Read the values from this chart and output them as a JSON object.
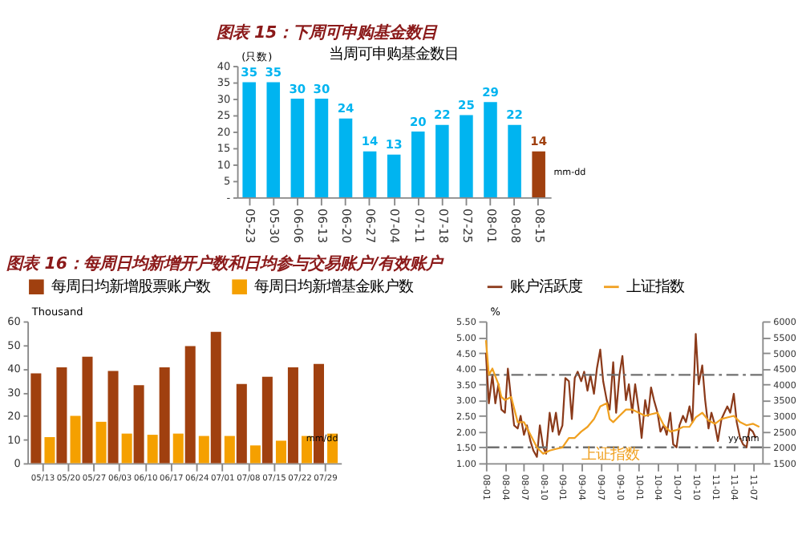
{
  "chart_data": [
    {
      "type": "bar",
      "title": "图表 15：下周可申购基金数目",
      "subtitle": "当周可申购基金数目",
      "ylabel": "(只数)",
      "xlabel": "mm-dd",
      "categories": [
        "05-23",
        "05-30",
        "06-06",
        "06-13",
        "06-20",
        "06-27",
        "07-04",
        "07-11",
        "07-18",
        "07-25",
        "08-01",
        "08-08",
        "08-15"
      ],
      "values": [
        35,
        35,
        30,
        30,
        24,
        14,
        13,
        20,
        22,
        25,
        29,
        22,
        14
      ],
      "colors": [
        "#00b4f0",
        "#00b4f0",
        "#00b4f0",
        "#00b4f0",
        "#00b4f0",
        "#00b4f0",
        "#00b4f0",
        "#00b4f0",
        "#00b4f0",
        "#00b4f0",
        "#00b4f0",
        "#00b4f0",
        "#a0400f"
      ],
      "data_labels": true,
      "ylim": [
        0,
        40
      ],
      "yticks": [
        {
          "value": 0,
          "label": "-"
        },
        5,
        10,
        15,
        20,
        25,
        30,
        35,
        40
      ],
      "grid": false
    },
    {
      "type": "bar",
      "title": "图表 16：每周日均新增开户数和日均参与交易账户/有效账户",
      "ylabel": "Thousand",
      "xlabel": "mm/dd",
      "categories": [
        "05/13",
        "05/20",
        "05/27",
        "06/03",
        "06/10",
        "06/17",
        "06/24",
        "07/01",
        "07/08",
        "07/15",
        "07/22",
        "07/29"
      ],
      "series": [
        {
          "name": "每周日均新增股票账户数",
          "color": "#a0400f",
          "values": [
            38,
            40.5,
            45,
            39,
            33,
            40.5,
            49.5,
            55.5,
            33.5,
            36.5,
            40.5,
            42
          ]
        },
        {
          "name": "每周日均新增基金账户数",
          "color": "#f5a000",
          "values": [
            11,
            20,
            17.5,
            12.5,
            12,
            12.5,
            11.5,
            11.5,
            7.5,
            9.5,
            11.5,
            12.5
          ]
        }
      ],
      "ylim": [
        0,
        60
      ],
      "yticks": [
        0,
        10,
        20,
        30,
        40,
        50,
        60
      ],
      "grid": false,
      "legend": "top"
    },
    {
      "type": "line",
      "ylabel": "%",
      "xlabel": "yy-mm",
      "legend": "top",
      "grid": false,
      "line_style": "solid",
      "marker": "none",
      "xlim": [
        "2008-01-01",
        "2011-08-15"
      ],
      "xticks": [
        {
          "value": "2008-01",
          "label": "08-01"
        },
        {
          "value": "2008-04",
          "label": "08-04"
        },
        {
          "value": "2008-07",
          "label": "08-07"
        },
        {
          "value": "2008-10",
          "label": "08-10"
        },
        {
          "value": "2009-01",
          "label": "09-01"
        },
        {
          "value": "2009-04",
          "label": "09-04"
        },
        {
          "value": "2009-07",
          "label": "09-07"
        },
        {
          "value": "2009-10",
          "label": "09-10"
        },
        {
          "value": "2010-01",
          "label": "10-01"
        },
        {
          "value": "2010-04",
          "label": "10-04"
        },
        {
          "value": "2010-07",
          "label": "10-07"
        },
        {
          "value": "2010-10",
          "label": "10-10"
        },
        {
          "value": "2011-01",
          "label": "11-01"
        },
        {
          "value": "2011-04",
          "label": "11-04"
        },
        {
          "value": "2011-07",
          "label": "11-07"
        }
      ],
      "ylim": [
        1.0,
        5.5
      ],
      "yticks": [
        {
          "value": 1.0,
          "label": "1.00"
        },
        {
          "value": 1.5,
          "label": "1.50"
        },
        {
          "value": 2.0,
          "label": "2.00"
        },
        {
          "value": 2.5,
          "label": "2.50"
        },
        {
          "value": 3.0,
          "label": "3.00"
        },
        {
          "value": 3.5,
          "label": "3.50"
        },
        {
          "value": 4.0,
          "label": "4.00"
        },
        {
          "value": 4.5,
          "label": "4.50"
        },
        {
          "value": 5.0,
          "label": "5.00"
        },
        {
          "value": 5.5,
          "label": "5.50"
        }
      ],
      "y2lim": [
        1500,
        6000
      ],
      "y2ticks": [
        1500,
        2000,
        2500,
        3000,
        3500,
        4000,
        4500,
        5000,
        5500,
        6000
      ],
      "series": [
        {
          "name": "账户活跃度",
          "color": "#8b3a1a",
          "x": [
            "2008-01-01",
            "2008-01-15",
            "2008-02-01",
            "2008-02-15",
            "2008-03-01",
            "2008-03-15",
            "2008-04-01",
            "2008-04-15",
            "2008-05-01",
            "2008-05-15",
            "2008-06-01",
            "2008-06-15",
            "2008-07-01",
            "2008-07-15",
            "2008-08-01",
            "2008-08-15",
            "2008-09-01",
            "2008-09-15",
            "2008-10-01",
            "2008-10-15",
            "2008-11-01",
            "2008-11-15",
            "2008-12-01",
            "2008-12-15",
            "2009-01-01",
            "2009-01-15",
            "2009-02-01",
            "2009-02-15",
            "2009-03-01",
            "2009-03-15",
            "2009-04-01",
            "2009-04-15",
            "2009-05-01",
            "2009-05-15",
            "2009-06-01",
            "2009-06-15",
            "2009-07-01",
            "2009-07-15",
            "2009-08-01",
            "2009-08-15",
            "2009-09-01",
            "2009-09-15",
            "2009-10-01",
            "2009-10-15",
            "2009-11-01",
            "2009-11-15",
            "2009-12-01",
            "2009-12-15",
            "2010-01-01",
            "2010-01-15",
            "2010-02-01",
            "2010-02-15",
            "2010-03-01",
            "2010-03-15",
            "2010-04-01",
            "2010-04-15",
            "2010-05-01",
            "2010-05-15",
            "2010-06-01",
            "2010-06-15",
            "2010-07-01",
            "2010-07-15",
            "2010-08-01",
            "2010-08-15",
            "2010-09-01",
            "2010-09-15",
            "2010-10-01",
            "2010-10-15",
            "2010-11-01",
            "2010-11-15",
            "2010-12-01",
            "2010-12-15",
            "2011-01-01",
            "2011-01-15",
            "2011-02-01",
            "2011-02-15",
            "2011-03-01",
            "2011-03-15",
            "2011-04-01",
            "2011-04-15",
            "2011-05-01",
            "2011-05-15",
            "2011-06-01",
            "2011-06-15",
            "2011-07-01",
            "2011-07-15"
          ],
          "values": [
            4.5,
            2.9,
            3.8,
            2.9,
            3.5,
            2.7,
            2.6,
            4.0,
            3.0,
            2.2,
            2.1,
            2.5,
            1.9,
            2.2,
            1.7,
            1.4,
            1.2,
            2.2,
            1.5,
            1.3,
            2.6,
            2.0,
            2.6,
            1.9,
            2.2,
            3.7,
            3.6,
            2.4,
            3.7,
            3.9,
            3.6,
            3.9,
            3.3,
            3.8,
            3.2,
            4.0,
            4.6,
            3.6,
            3.0,
            2.7,
            4.2,
            2.6,
            3.8,
            4.4,
            3.0,
            3.5,
            2.6,
            3.5,
            2.7,
            1.8,
            3.0,
            2.5,
            3.4,
            3.0,
            2.6,
            2.0,
            2.2,
            1.9,
            2.6,
            1.6,
            1.5,
            2.2,
            2.5,
            2.3,
            2.8,
            2.3,
            5.1,
            3.5,
            4.1,
            3.0,
            2.1,
            2.6,
            2.2,
            1.7,
            2.4,
            2.6,
            2.8,
            2.6,
            3.2,
            2.3,
            1.8,
            1.6,
            1.5,
            2.1,
            2.0,
            1.8
          ]
        },
        {
          "name": "上证指数",
          "color": "#f0a020",
          "axis": "y2",
          "x": [
            "2008-01-01",
            "2008-01-15",
            "2008-02-01",
            "2008-03-01",
            "2008-03-15",
            "2008-04-01",
            "2008-05-01",
            "2008-06-01",
            "2008-07-01",
            "2008-08-01",
            "2008-09-01",
            "2008-10-01",
            "2008-11-01",
            "2008-12-01",
            "2009-01-01",
            "2009-02-01",
            "2009-03-01",
            "2009-04-01",
            "2009-05-01",
            "2009-06-01",
            "2009-07-01",
            "2009-08-01",
            "2009-08-15",
            "2009-09-01",
            "2009-10-01",
            "2009-11-01",
            "2009-12-01",
            "2010-01-01",
            "2010-02-01",
            "2010-03-01",
            "2010-04-01",
            "2010-05-01",
            "2010-06-01",
            "2010-07-01",
            "2010-08-01",
            "2010-09-01",
            "2010-10-01",
            "2010-11-01",
            "2010-12-01",
            "2011-01-01",
            "2011-02-01",
            "2011-03-01",
            "2011-04-01",
            "2011-05-01",
            "2011-06-01",
            "2011-07-01",
            "2011-08-01"
          ],
          "values": [
            5400,
            4300,
            4500,
            4000,
            3600,
            3500,
            3600,
            2800,
            2800,
            2400,
            2000,
            1800,
            1900,
            1950,
            2000,
            2300,
            2300,
            2500,
            2650,
            2900,
            3300,
            3400,
            2900,
            2800,
            3000,
            3200,
            3200,
            3100,
            3000,
            3050,
            3100,
            2700,
            2500,
            2550,
            2650,
            2650,
            2950,
            3100,
            2850,
            2750,
            2900,
            2950,
            3000,
            2800,
            2700,
            2750,
            2650
          ]
        }
      ],
      "ref_lines": [
        {
          "axis": "y",
          "value": 3.8,
          "color": "#707070",
          "line_style": "dashed"
        },
        {
          "axis": "y",
          "value": 1.5,
          "color": "#707070",
          "line_style": "dashed"
        }
      ],
      "annotations": [
        "上证指数"
      ]
    }
  ]
}
